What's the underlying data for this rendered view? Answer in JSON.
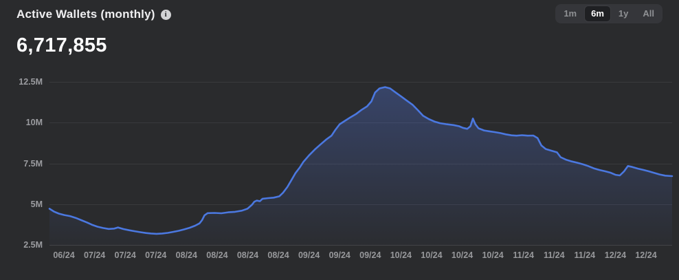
{
  "header": {
    "title": "Active Wallets (monthly)",
    "value": "6,717,855"
  },
  "range_selector": {
    "options": [
      {
        "label": "1m",
        "selected": false
      },
      {
        "label": "6m",
        "selected": true
      },
      {
        "label": "1y",
        "selected": false
      },
      {
        "label": "All",
        "selected": false
      }
    ]
  },
  "colors": {
    "background": "#2a2b2d",
    "accent_line": "#4b78e0",
    "area_top": "rgba(86,124,236,0.32)",
    "area_bottom": "rgba(86,124,236,0.02)",
    "grid": "#393a3d",
    "axis_label": "#9b9ca0"
  },
  "chart_data": {
    "type": "area",
    "title": "Active Wallets (monthly)",
    "current_value": 6717855,
    "y_unit": "M",
    "ylim": [
      2.5,
      12.5
    ],
    "grid": "horizontal",
    "legend_position": "none",
    "y_ticks": [
      {
        "value": 2.5,
        "label": "2.5M"
      },
      {
        "value": 5,
        "label": "5M"
      },
      {
        "value": 7.5,
        "label": "7.5M"
      },
      {
        "value": 10,
        "label": "10M"
      },
      {
        "value": 12.5,
        "label": "12.5M"
      }
    ],
    "x_tick_labels": [
      "06/24",
      "07/24",
      "07/24",
      "07/24",
      "08/24",
      "08/24",
      "08/24",
      "08/24",
      "09/24",
      "09/24",
      "09/24",
      "10/24",
      "10/24",
      "10/24",
      "10/24",
      "11/24",
      "11/24",
      "11/24",
      "12/24",
      "12/24"
    ],
    "series": [
      {
        "name": "Active Wallets",
        "color": "#4b78e0",
        "points": [
          [
            0,
            4.72
          ],
          [
            0.007,
            4.55
          ],
          [
            0.015,
            4.42
          ],
          [
            0.024,
            4.33
          ],
          [
            0.033,
            4.27
          ],
          [
            0.042,
            4.16
          ],
          [
            0.051,
            4.02
          ],
          [
            0.06,
            3.88
          ],
          [
            0.068,
            3.74
          ],
          [
            0.077,
            3.62
          ],
          [
            0.086,
            3.54
          ],
          [
            0.095,
            3.48
          ],
          [
            0.104,
            3.5
          ],
          [
            0.11,
            3.57
          ],
          [
            0.119,
            3.47
          ],
          [
            0.128,
            3.4
          ],
          [
            0.137,
            3.34
          ],
          [
            0.146,
            3.28
          ],
          [
            0.155,
            3.23
          ],
          [
            0.163,
            3.2
          ],
          [
            0.172,
            3.18
          ],
          [
            0.181,
            3.2
          ],
          [
            0.19,
            3.24
          ],
          [
            0.199,
            3.3
          ],
          [
            0.208,
            3.37
          ],
          [
            0.216,
            3.45
          ],
          [
            0.225,
            3.55
          ],
          [
            0.234,
            3.68
          ],
          [
            0.241,
            3.82
          ],
          [
            0.245,
            4.02
          ],
          [
            0.249,
            4.32
          ],
          [
            0.254,
            4.45
          ],
          [
            0.265,
            4.46
          ],
          [
            0.276,
            4.44
          ],
          [
            0.287,
            4.5
          ],
          [
            0.298,
            4.53
          ],
          [
            0.309,
            4.6
          ],
          [
            0.318,
            4.72
          ],
          [
            0.325,
            4.95
          ],
          [
            0.329,
            5.15
          ],
          [
            0.333,
            5.22
          ],
          [
            0.338,
            5.18
          ],
          [
            0.342,
            5.33
          ],
          [
            0.351,
            5.37
          ],
          [
            0.36,
            5.4
          ],
          [
            0.369,
            5.48
          ],
          [
            0.375,
            5.7
          ],
          [
            0.382,
            6.05
          ],
          [
            0.389,
            6.5
          ],
          [
            0.395,
            6.9
          ],
          [
            0.402,
            7.25
          ],
          [
            0.408,
            7.6
          ],
          [
            0.417,
            8
          ],
          [
            0.426,
            8.35
          ],
          [
            0.435,
            8.65
          ],
          [
            0.444,
            8.95
          ],
          [
            0.453,
            9.2
          ],
          [
            0.459,
            9.55
          ],
          [
            0.466,
            9.9
          ],
          [
            0.475,
            10.12
          ],
          [
            0.483,
            10.32
          ],
          [
            0.492,
            10.52
          ],
          [
            0.501,
            10.78
          ],
          [
            0.51,
            11
          ],
          [
            0.517,
            11.3
          ],
          [
            0.523,
            11.85
          ],
          [
            0.53,
            12.1
          ],
          [
            0.539,
            12.18
          ],
          [
            0.547,
            12.1
          ],
          [
            0.556,
            11.85
          ],
          [
            0.565,
            11.6
          ],
          [
            0.574,
            11.35
          ],
          [
            0.583,
            11.1
          ],
          [
            0.592,
            10.75
          ],
          [
            0.6,
            10.42
          ],
          [
            0.609,
            10.22
          ],
          [
            0.618,
            10.07
          ],
          [
            0.627,
            9.97
          ],
          [
            0.638,
            9.9
          ],
          [
            0.649,
            9.85
          ],
          [
            0.658,
            9.78
          ],
          [
            0.664,
            9.68
          ],
          [
            0.671,
            9.62
          ],
          [
            0.676,
            9.78
          ],
          [
            0.68,
            10.25
          ],
          [
            0.684,
            9.9
          ],
          [
            0.689,
            9.65
          ],
          [
            0.698,
            9.52
          ],
          [
            0.706,
            9.47
          ],
          [
            0.715,
            9.42
          ],
          [
            0.724,
            9.36
          ],
          [
            0.733,
            9.28
          ],
          [
            0.742,
            9.22
          ],
          [
            0.75,
            9.2
          ],
          [
            0.759,
            9.23
          ],
          [
            0.768,
            9.2
          ],
          [
            0.777,
            9.21
          ],
          [
            0.784,
            9.05
          ],
          [
            0.79,
            8.6
          ],
          [
            0.797,
            8.38
          ],
          [
            0.806,
            8.28
          ],
          [
            0.815,
            8.18
          ],
          [
            0.821,
            7.88
          ],
          [
            0.83,
            7.72
          ],
          [
            0.839,
            7.62
          ],
          [
            0.848,
            7.54
          ],
          [
            0.857,
            7.44
          ],
          [
            0.865,
            7.34
          ],
          [
            0.874,
            7.2
          ],
          [
            0.883,
            7.1
          ],
          [
            0.892,
            7.02
          ],
          [
            0.901,
            6.93
          ],
          [
            0.909,
            6.8
          ],
          [
            0.916,
            6.76
          ],
          [
            0.923,
            7.02
          ],
          [
            0.929,
            7.34
          ],
          [
            0.936,
            7.28
          ],
          [
            0.945,
            7.18
          ],
          [
            0.954,
            7.1
          ],
          [
            0.962,
            7.02
          ],
          [
            0.971,
            6.92
          ],
          [
            0.98,
            6.82
          ],
          [
            0.989,
            6.75
          ],
          [
            1,
            6.72
          ]
        ]
      }
    ]
  }
}
